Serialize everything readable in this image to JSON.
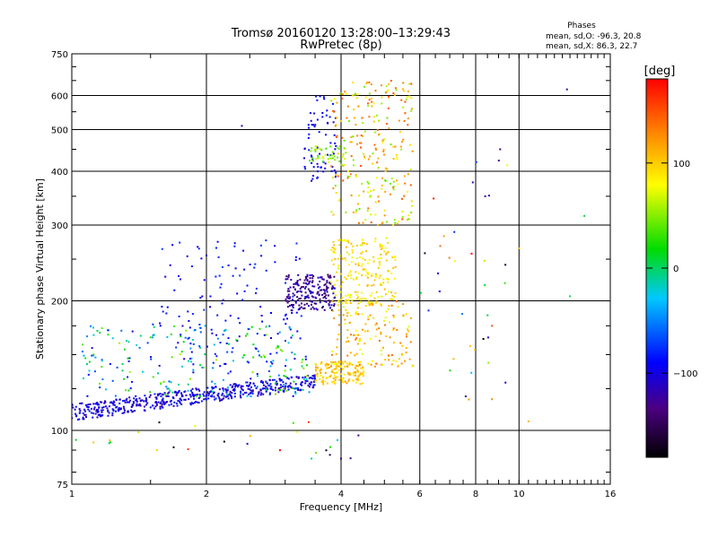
{
  "chart_data": {
    "type": "scatter",
    "title": "Tromsø 20160120 13:28:00–13:29:43",
    "subtitle": "RwPretec (8p)",
    "xlabel": "Frequency [MHz]",
    "ylabel": "Stationary phase Virtual Height [km]",
    "x_scale": "log",
    "y_scale": "log",
    "xlim": [
      1,
      16
    ],
    "ylim": [
      75,
      750
    ],
    "x_ticks": [
      1,
      2,
      4,
      6,
      8,
      10,
      16
    ],
    "x_tick_labels": [
      "1",
      "2",
      "4",
      "6",
      "8",
      "10",
      "16"
    ],
    "y_ticks": [
      75,
      100,
      200,
      300,
      400,
      500,
      600,
      750
    ],
    "y_tick_labels": [
      "75",
      "100",
      "200",
      "300",
      "400",
      "500",
      "600",
      "750"
    ],
    "grid": true,
    "legend": {
      "title": "Phases",
      "lines": [
        "mean, sd,O: -96.3, 20.8",
        "mean, sd,X: 86.3, 22.7"
      ],
      "placement": "top-right"
    },
    "colorbar": {
      "label": "[deg]",
      "range": [
        -180,
        180
      ],
      "ticks": [
        -100,
        0,
        100
      ],
      "tick_labels": [
        "−100",
        "0",
        "100"
      ],
      "colormap": "rainbow",
      "placement": "right"
    },
    "clusters": [
      {
        "f": [
          1.0,
          3.5
        ],
        "h": [
          110,
          130
        ],
        "phase": [
          -120,
          -80
        ],
        "n": 500,
        "trend": "rising"
      },
      {
        "f": [
          1.05,
          3.4
        ],
        "h": [
          120,
          175
        ],
        "phase": [
          -110,
          60
        ],
        "n": 250
      },
      {
        "f": [
          1.5,
          3.3
        ],
        "h": [
          140,
          280
        ],
        "phase": [
          -100,
          -70
        ],
        "n": 120
      },
      {
        "f": [
          3.0,
          3.9
        ],
        "h": [
          190,
          230
        ],
        "phase": [
          -150,
          -100
        ],
        "n": 200
      },
      {
        "f": [
          3.3,
          3.9
        ],
        "h": [
          380,
          600
        ],
        "phase": [
          -110,
          -80
        ],
        "n": 70
      },
      {
        "f": [
          3.4,
          4.1
        ],
        "h": [
          420,
          460
        ],
        "phase": [
          30,
          70
        ],
        "n": 40
      },
      {
        "f": [
          3.5,
          4.5
        ],
        "h": [
          128,
          145
        ],
        "phase": [
          80,
          120
        ],
        "n": 150
      },
      {
        "f": [
          3.8,
          5.3
        ],
        "h": [
          195,
          280
        ],
        "phase": [
          70,
          110
        ],
        "n": 200
      },
      {
        "f": [
          3.8,
          5.8
        ],
        "h": [
          140,
          200
        ],
        "phase": [
          70,
          140
        ],
        "n": 150
      },
      {
        "f": [
          3.8,
          5.8
        ],
        "h": [
          300,
          650
        ],
        "phase": [
          40,
          150
        ],
        "n": 250
      },
      {
        "f": [
          6.0,
          9.5
        ],
        "h": [
          115,
          480
        ],
        "phase": [
          -180,
          180
        ],
        "n": 35
      },
      {
        "f": [
          0.95,
          1.9
        ],
        "h": [
          88,
          105
        ],
        "phase": [
          -180,
          180
        ],
        "n": 10
      },
      {
        "f": [
          2.0,
          4.5
        ],
        "h": [
          85,
          105
        ],
        "phase": [
          -180,
          180
        ],
        "n": 15
      }
    ],
    "points": [
      {
        "f": 12.8,
        "h": 620,
        "phase": -120
      },
      {
        "f": 13.0,
        "h": 205,
        "phase": 5
      },
      {
        "f": 14.0,
        "h": 315,
        "phase": 10
      },
      {
        "f": 10.5,
        "h": 105,
        "phase": 110
      },
      {
        "f": 10.0,
        "h": 265,
        "phase": 110
      },
      {
        "f": 9.3,
        "h": 220,
        "phase": 30
      },
      {
        "f": 8.4,
        "h": 350,
        "phase": -120
      },
      {
        "f": 7.6,
        "h": 120,
        "phase": -120
      },
      {
        "f": 8.7,
        "h": 175,
        "phase": 150
      },
      {
        "f": 4.0,
        "h": 86,
        "phase": -130
      },
      {
        "f": 2.4,
        "h": 510,
        "phase": -120
      },
      {
        "f": 2.0,
        "h": 255,
        "phase": -120
      },
      {
        "f": 1.55,
        "h": 90,
        "phase": 100
      }
    ]
  }
}
